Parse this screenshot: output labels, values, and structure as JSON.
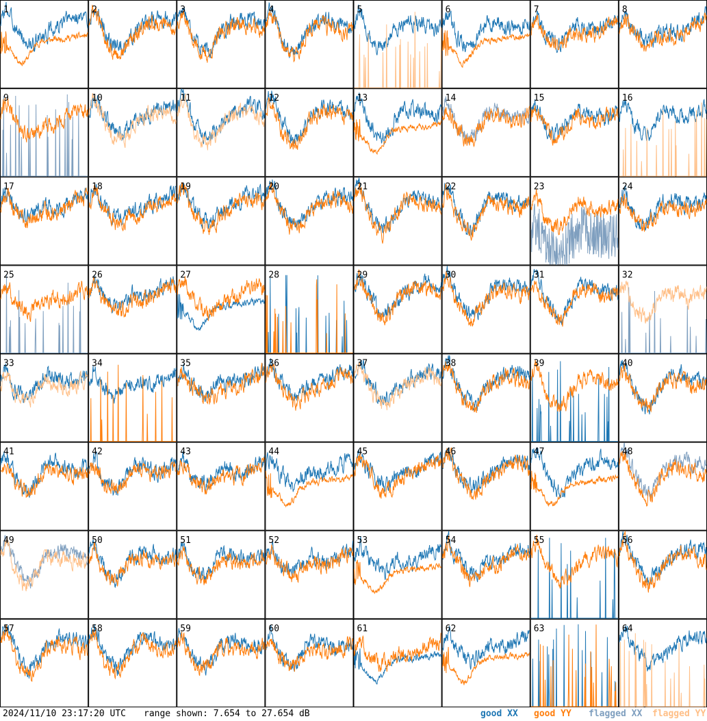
{
  "chart_data": {
    "type": "line",
    "panel_count": 64,
    "panel_labels": [
      "1",
      "2",
      "3",
      "4",
      "5",
      "6",
      "7",
      "8",
      "9",
      "10",
      "11",
      "12",
      "13",
      "14",
      "15",
      "16",
      "17",
      "18",
      "19",
      "20",
      "21",
      "22",
      "23",
      "24",
      "25",
      "26",
      "27",
      "28",
      "29",
      "30",
      "31",
      "32",
      "33",
      "34",
      "35",
      "36",
      "37",
      "38",
      "39",
      "40",
      "41",
      "42",
      "43",
      "44",
      "45",
      "46",
      "47",
      "48",
      "49",
      "50",
      "51",
      "52",
      "53",
      "54",
      "55",
      "56",
      "57",
      "58",
      "59",
      "60",
      "61",
      "62",
      "63",
      "64"
    ],
    "grid": {
      "rows": 8,
      "cols": 8
    },
    "ylim": [
      7.654,
      27.654
    ],
    "yunit": "dB",
    "series": [
      {
        "name": "good XX",
        "color": "#1f77b4"
      },
      {
        "name": "good YY",
        "color": "#ff7f0e"
      },
      {
        "name": "flagged XX",
        "color": "#7f9fbf"
      },
      {
        "name": "flagged YY",
        "color": "#ffbf87"
      }
    ],
    "panel_status": {
      "1": {
        "xx": "normal",
        "yy": "low"
      },
      "5": {
        "xx": "normal",
        "yy": "flagged_spiky"
      },
      "6": {
        "xx": "normal",
        "yy": "low"
      },
      "9": {
        "xx": "flagged_spiky",
        "yy": "normal"
      },
      "10": {
        "xx": "normal",
        "yy": "flagged"
      },
      "11": {
        "xx": "normal",
        "yy": "flagged"
      },
      "13": {
        "xx": "normal",
        "yy": "low"
      },
      "14": {
        "xx": "flagged",
        "yy": "normal"
      },
      "16": {
        "xx": "normal",
        "yy": "flagged_spiky"
      },
      "23": {
        "xx": "flagged_noisy",
        "yy": "normal"
      },
      "25": {
        "xx": "flagged_spiky",
        "yy": "normal"
      },
      "27": {
        "xx": "low",
        "yy": "normal"
      },
      "28": {
        "xx": "spiky",
        "yy": "spiky"
      },
      "32": {
        "xx": "flagged_spiky",
        "yy": "flagged"
      },
      "33": {
        "xx": "normal",
        "yy": "flagged"
      },
      "34": {
        "xx": "normal",
        "yy": "spiky"
      },
      "37": {
        "xx": "normal",
        "yy": "flagged"
      },
      "39": {
        "xx": "spiky",
        "yy": "normal"
      },
      "44": {
        "xx": "normal",
        "yy": "low"
      },
      "47": {
        "xx": "normal",
        "yy": "low"
      },
      "48": {
        "xx": "flagged",
        "yy": "normal"
      },
      "49": {
        "xx": "flagged",
        "yy": "flagged"
      },
      "53": {
        "xx": "normal",
        "yy": "low"
      },
      "55": {
        "xx": "spiky",
        "yy": "normal"
      },
      "61": {
        "xx": "low",
        "yy": "normal"
      },
      "62": {
        "xx": "normal",
        "yy": "low"
      },
      "63": {
        "xx": "spiky",
        "yy": "spiky"
      },
      "64": {
        "xx": "normal",
        "yy": "flagged_spiky"
      }
    }
  },
  "footer": {
    "timestamp": "2024/11/10 23:17:20 UTC",
    "range_text": "range shown: 7.654 to 27.654 dB",
    "legend": [
      {
        "label": "good XX",
        "color": "#1f77b4"
      },
      {
        "label": "good YY",
        "color": "#ff7f0e"
      },
      {
        "label": "flagged XX",
        "color": "#7f9fbf"
      },
      {
        "label": "flagged YY",
        "color": "#ffbf87"
      }
    ]
  }
}
